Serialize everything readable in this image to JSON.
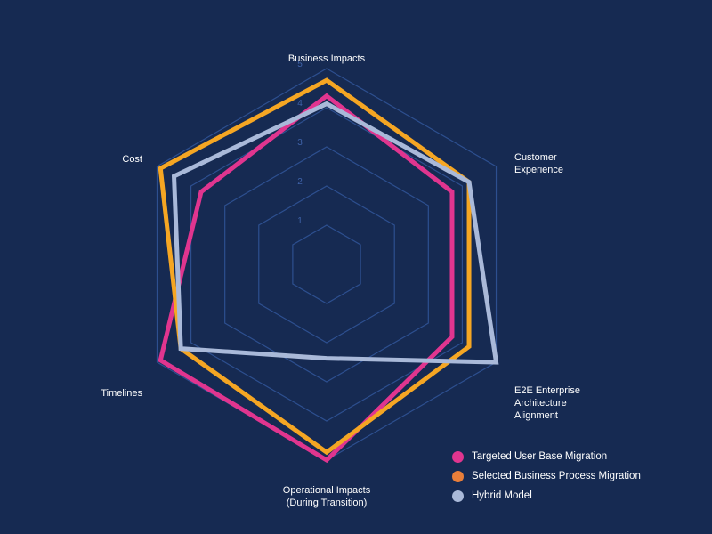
{
  "chart_data": {
    "type": "radar",
    "title": "",
    "axes": [
      "Business Impacts",
      "Customer\nExperience",
      "E2E Enterprise\nArchitecture\nAlignment",
      "Operational Impacts\n(During Transition)",
      "Timelines",
      "Cost"
    ],
    "r_ticks": [
      1,
      2,
      3,
      4,
      5
    ],
    "r_range": [
      0,
      5
    ],
    "grid": true,
    "legend_position": "bottom-right",
    "series": [
      {
        "name": "Targeted User Base Migration",
        "color": "#e0358f",
        "values": [
          4.3,
          3.7,
          3.7,
          5.0,
          4.9,
          3.7
        ]
      },
      {
        "name": "Selected Business Process Migration",
        "color": "#f5a623",
        "values": [
          4.7,
          4.2,
          4.2,
          4.8,
          4.3,
          4.9
        ]
      },
      {
        "name": "Hybrid Model",
        "color": "#a9b9d9",
        "values": [
          4.1,
          4.2,
          5.0,
          2.4,
          4.3,
          4.5
        ]
      }
    ]
  }
}
